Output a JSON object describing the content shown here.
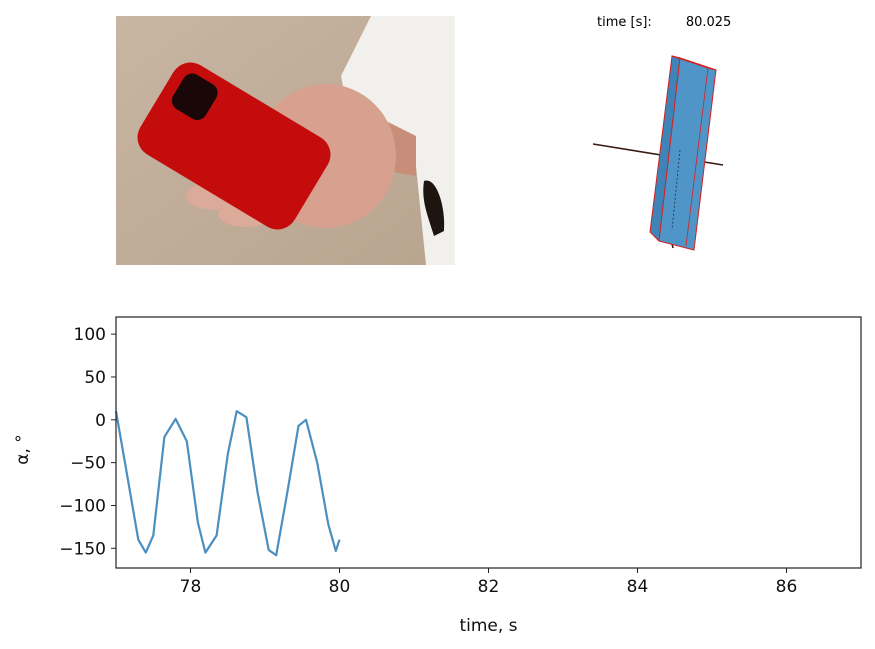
{
  "photo": {
    "subject": "hand holding red phone case",
    "phone_color": "#c40c0c"
  },
  "time_readout": {
    "label": "time [s]:",
    "value": "80.025"
  },
  "box3d": {
    "face_color": "#4f95c8",
    "edge_color": "#d42020",
    "axis_color": "#3a1a10"
  },
  "chart_data": {
    "type": "line",
    "xlabel": "time, s",
    "ylabel": "α, °",
    "xlim": [
      77.0,
      87.0
    ],
    "ylim": [
      -173,
      120
    ],
    "xticks": [
      78,
      80,
      82,
      84,
      86
    ],
    "yticks": [
      100,
      50,
      0,
      -50,
      -100,
      -150
    ],
    "xtick_labels": [
      "78",
      "80",
      "82",
      "84",
      "86"
    ],
    "ytick_labels": [
      "100",
      "50",
      "0",
      "−50",
      "−100",
      "−150"
    ],
    "grid": false,
    "series": [
      {
        "color": "#4a8fc0",
        "x": [
          77.0,
          77.15,
          77.3,
          77.4,
          77.5,
          77.65,
          77.8,
          77.95,
          78.1,
          78.2,
          78.35,
          78.5,
          78.62,
          78.75,
          78.9,
          79.05,
          79.15,
          79.3,
          79.45,
          79.55,
          79.7,
          79.85,
          79.95,
          80.0
        ],
        "y": [
          10,
          -65,
          -140,
          -155,
          -135,
          -20,
          1,
          -25,
          -120,
          -155,
          -135,
          -40,
          10,
          3,
          -85,
          -152,
          -158,
          -85,
          -7,
          0,
          -50,
          -122,
          -153,
          -140
        ]
      }
    ]
  }
}
